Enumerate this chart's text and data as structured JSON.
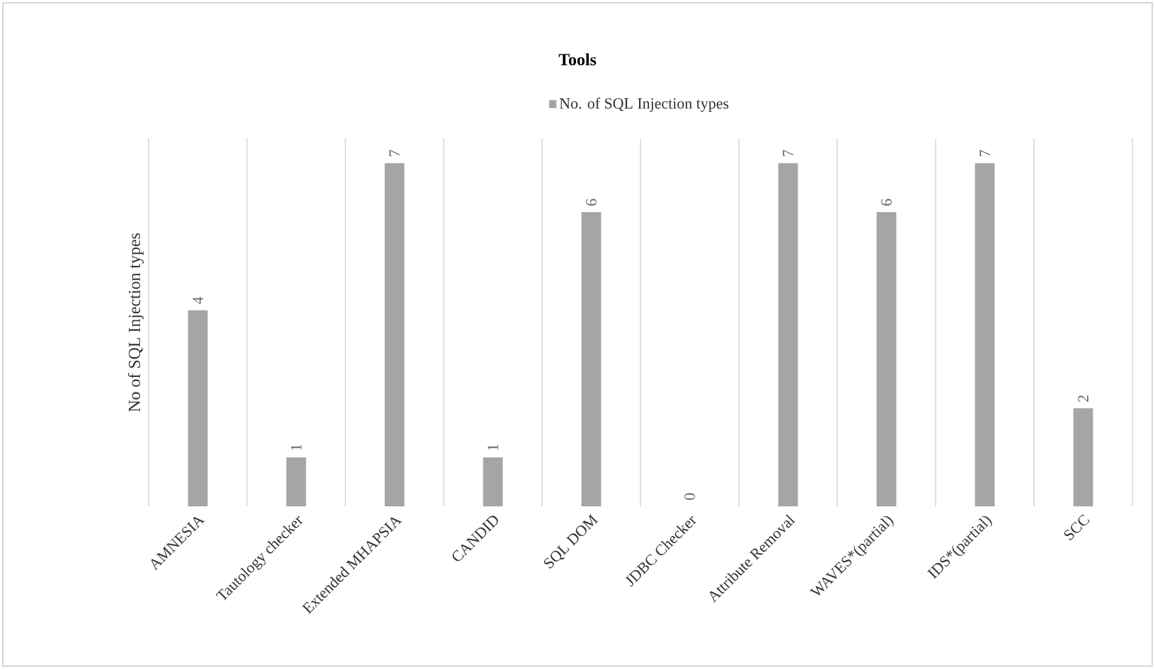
{
  "chart_data": {
    "type": "bar",
    "title": "Tools",
    "ylabel": "No of SQL Injection types",
    "categories": [
      "AMNESIA",
      "Tautology checker",
      "Extended MHAPSIA",
      "CANDID",
      "SQL DOM",
      "JDBC Checker",
      "Attribute Removal",
      "WAVES*(partial)",
      "IDS*(partial)",
      "SCC"
    ],
    "series": [
      {
        "name": "No. of SQL Injection types",
        "color": "#a5a5a5",
        "values": [
          4,
          1,
          7,
          1,
          6,
          0,
          7,
          6,
          7,
          2
        ]
      }
    ],
    "ylim": [
      0,
      7.5
    ],
    "data_labels": true,
    "grid": "x",
    "legend": "top",
    "tick_labels": "x"
  }
}
